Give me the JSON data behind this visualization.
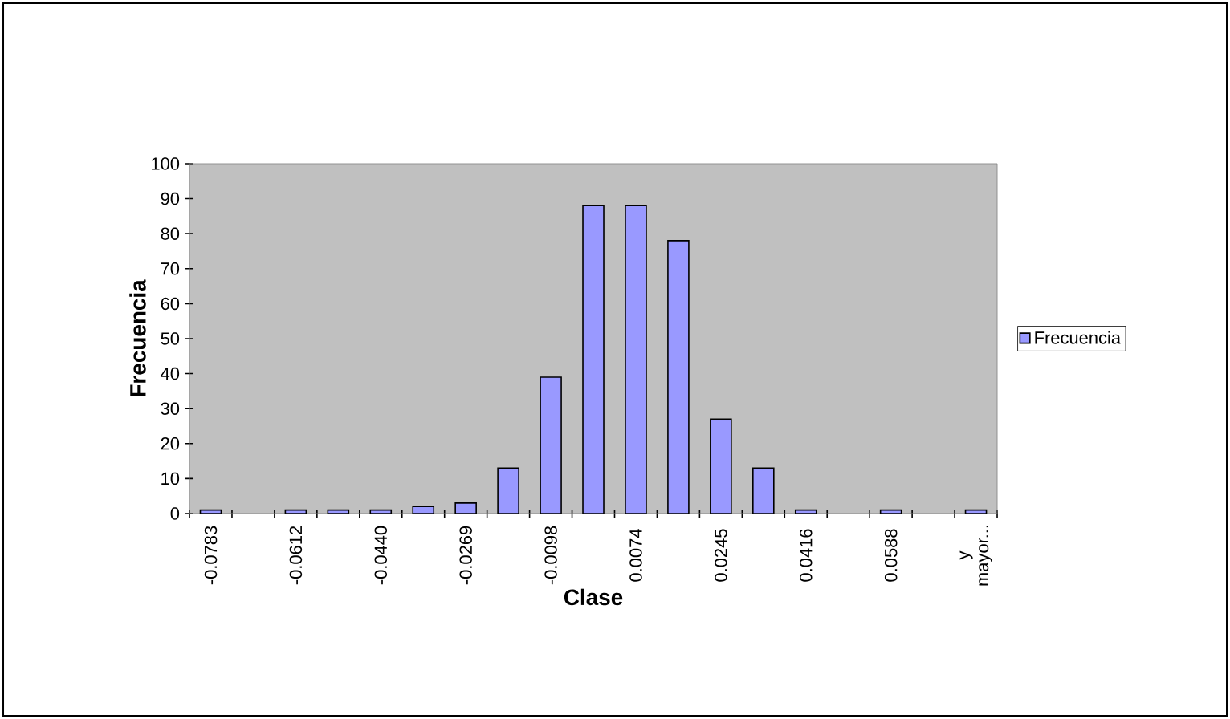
{
  "chart_data": {
    "type": "bar",
    "xlabel": "Clase",
    "ylabel": "Frecuencia",
    "categories": [
      "-0.0783",
      null,
      "-0.0612",
      null,
      "-0.0440",
      null,
      "-0.0269",
      null,
      "-0.0098",
      null,
      "0.0074",
      null,
      "0.0245",
      null,
      "0.0416",
      null,
      "0.0588",
      null,
      "y mayor..."
    ],
    "series": [
      {
        "name": "Frecuencia",
        "color": "#9999ff",
        "values": [
          1,
          0,
          1,
          1,
          1,
          2,
          3,
          13,
          39,
          88,
          88,
          78,
          27,
          13,
          1,
          0,
          1,
          0,
          1
        ]
      }
    ],
    "ylim": [
      0,
      100
    ],
    "yticks": [
      0,
      10,
      20,
      30,
      40,
      50,
      60,
      70,
      80,
      90,
      100
    ],
    "legend": "right"
  }
}
